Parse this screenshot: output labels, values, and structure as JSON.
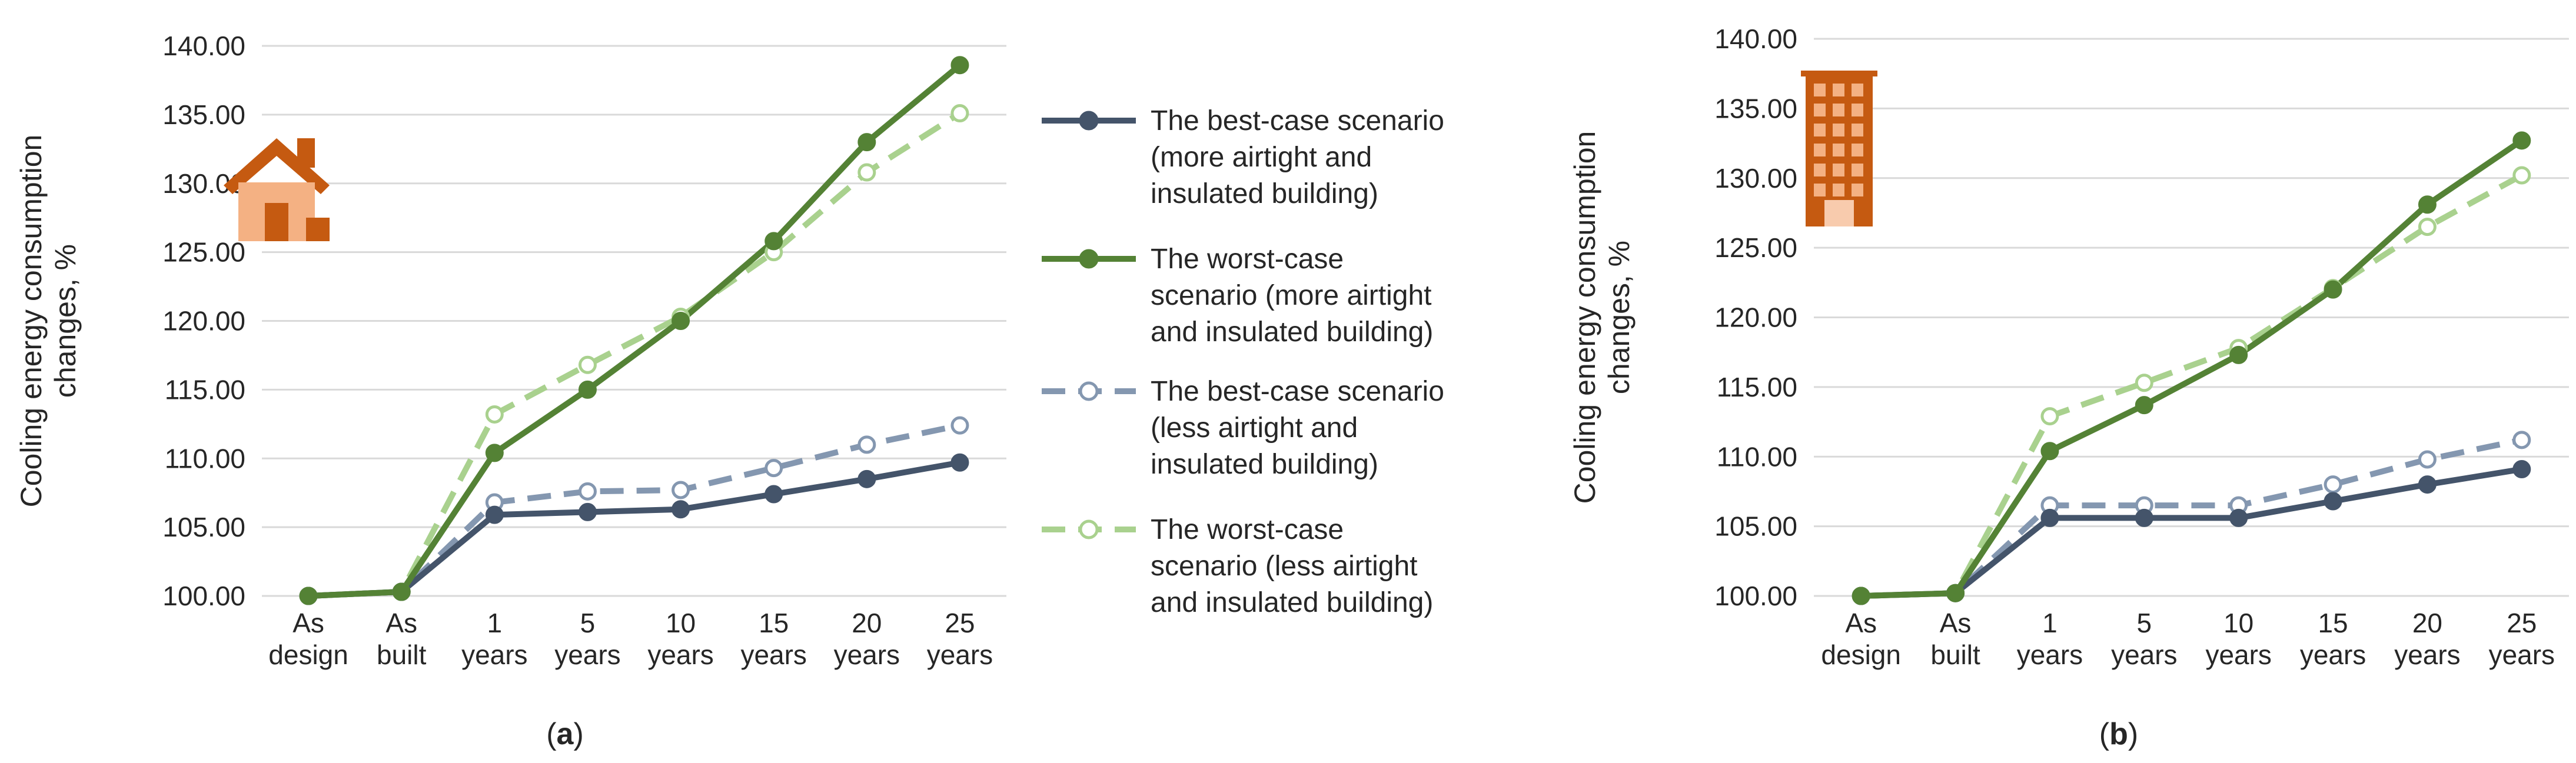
{
  "legend": [
    {
      "key": "best_more",
      "lines": [
        "The best-case scenario",
        "(more airtight and",
        "insulated building)"
      ]
    },
    {
      "key": "worst_more",
      "lines": [
        "The worst-case",
        "scenario (more airtight",
        "and insulated building)"
      ]
    },
    {
      "key": "best_less",
      "lines": [
        "The best-case scenario",
        "(less airtight and",
        "insulated building)"
      ]
    },
    {
      "key": "worst_less",
      "lines": [
        "The worst-case",
        "scenario (less airtight",
        "and insulated building)"
      ]
    }
  ],
  "series_styles": {
    "best_more": {
      "color": "#44546a",
      "dash": "none",
      "marker": "filled"
    },
    "worst_more": {
      "color": "#548235",
      "dash": "none",
      "marker": "filled"
    },
    "best_less": {
      "color": "#8497b0",
      "dash": "dashed",
      "marker": "hollow"
    },
    "worst_less": {
      "color": "#a9d18e",
      "dash": "dashed",
      "marker": "hollow"
    }
  },
  "chart_data": [
    {
      "type": "line",
      "panel_label_parts": [
        "(",
        "a",
        ")"
      ],
      "icon": "house-icon",
      "icon_color": "#c55a11",
      "ylabel_lines": [
        "Cooling energy consumption",
        "changes, %"
      ],
      "ylim": [
        100,
        140
      ],
      "yticks": [
        "100.00",
        "105.00",
        "110.00",
        "115.00",
        "120.00",
        "125.00",
        "130.00",
        "135.00",
        "140.00"
      ],
      "categories": [
        [
          "As",
          "design"
        ],
        [
          "As",
          "built"
        ],
        [
          "1",
          "years"
        ],
        [
          "5",
          "years"
        ],
        [
          "10",
          "years"
        ],
        [
          "15",
          "years"
        ],
        [
          "20",
          "years"
        ],
        [
          "25",
          "years"
        ]
      ],
      "grid": true,
      "series": [
        {
          "key": "best_more",
          "name": "The best-case scenario (more airtight and insulated building)",
          "values": [
            100.0,
            100.3,
            105.9,
            106.1,
            106.3,
            107.4,
            108.5,
            109.7
          ]
        },
        {
          "key": "worst_more",
          "name": "The worst-case scenario (more airtight and insulated building)",
          "values": [
            100.0,
            100.3,
            110.4,
            115.0,
            120.0,
            125.8,
            133.0,
            138.6
          ]
        },
        {
          "key": "best_less",
          "name": "The best-case scenario (less airtight and insulated building)",
          "values": [
            100.0,
            100.3,
            106.8,
            107.6,
            107.7,
            109.3,
            111.0,
            112.4
          ]
        },
        {
          "key": "worst_less",
          "name": "The worst-case scenario (less airtight and insulated building)",
          "values": [
            100.0,
            100.3,
            113.2,
            116.8,
            120.3,
            125.0,
            130.8,
            135.1
          ]
        }
      ]
    },
    {
      "type": "line",
      "panel_label_parts": [
        "(",
        "b",
        ")"
      ],
      "icon": "office-building-icon",
      "icon_color": "#c55a11",
      "ylabel_lines": [
        "Cooling energy consumption",
        "changes, %"
      ],
      "ylim": [
        100,
        140
      ],
      "yticks": [
        "100.00",
        "105.00",
        "110.00",
        "115.00",
        "120.00",
        "125.00",
        "130.00",
        "135.00",
        "140.00"
      ],
      "categories": [
        [
          "As",
          "design"
        ],
        [
          "As",
          "built"
        ],
        [
          "1",
          "years"
        ],
        [
          "5",
          "years"
        ],
        [
          "10",
          "years"
        ],
        [
          "15",
          "years"
        ],
        [
          "20",
          "years"
        ],
        [
          "25",
          "years"
        ]
      ],
      "grid": true,
      "series": [
        {
          "key": "best_more",
          "name": "The best-case scenario (more airtight and insulated building)",
          "values": [
            100.0,
            100.2,
            105.6,
            105.6,
            105.6,
            106.8,
            108.0,
            109.1
          ]
        },
        {
          "key": "worst_more",
          "name": "The worst-case scenario (more airtight and insulated building)",
          "values": [
            100.0,
            100.2,
            110.4,
            113.7,
            117.3,
            122.0,
            128.1,
            132.7
          ]
        },
        {
          "key": "best_less",
          "name": "The best-case scenario (less airtight and insulated building)",
          "values": [
            100.0,
            100.2,
            106.5,
            106.5,
            106.5,
            108.0,
            109.8,
            111.2
          ]
        },
        {
          "key": "worst_less",
          "name": "The worst-case scenario (less airtight and insulated building)",
          "values": [
            100.0,
            100.2,
            112.9,
            115.3,
            117.8,
            122.1,
            126.5,
            130.2
          ]
        }
      ]
    }
  ]
}
